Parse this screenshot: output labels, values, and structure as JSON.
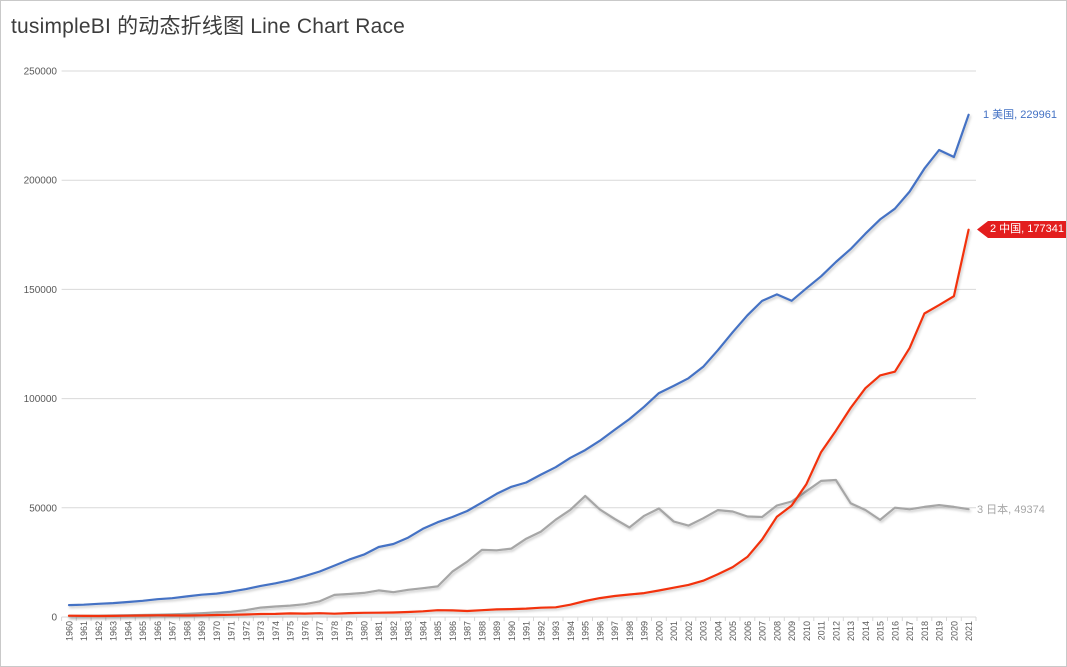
{
  "chart_data": {
    "type": "line",
    "title": "tusimpleBI 的动态折线图 Line Chart Race",
    "xlabel": "",
    "ylabel": "",
    "ylim": [
      0,
      250000
    ],
    "yticks": [
      0,
      50000,
      100000,
      150000,
      200000,
      250000
    ],
    "grid": "horizontal",
    "legend_position": "end-of-line-labels-right",
    "axis_text_color": "#595959",
    "gridline_color": "#d9d9d9",
    "x": [
      1960,
      1961,
      1962,
      1963,
      1964,
      1965,
      1966,
      1967,
      1968,
      1969,
      1970,
      1971,
      1972,
      1973,
      1974,
      1975,
      1976,
      1977,
      1978,
      1979,
      1980,
      1981,
      1982,
      1983,
      1984,
      1985,
      1986,
      1987,
      1988,
      1989,
      1990,
      1991,
      1992,
      1993,
      1994,
      1995,
      1996,
      1997,
      1998,
      1999,
      2000,
      2001,
      2002,
      2003,
      2004,
      2005,
      2006,
      2007,
      2008,
      2009,
      2010,
      2011,
      2012,
      2013,
      2014,
      2015,
      2016,
      2017,
      2018,
      2019,
      2020,
      2021
    ],
    "series": [
      {
        "id": "usa",
        "rank": 1,
        "name": "美国",
        "end_label": "1 美国, 229961",
        "final_value": 229961,
        "color": "#4472c4",
        "label_style": "plain",
        "values": [
          5433,
          5633,
          6051,
          6386,
          6858,
          7437,
          8150,
          8617,
          9425,
          10199,
          10733,
          11649,
          12791,
          14254,
          15452,
          16849,
          18734,
          20818,
          23516,
          26273,
          28573,
          32070,
          33438,
          36340,
          40376,
          43390,
          45796,
          48552,
          52364,
          56416,
          59631,
          61581,
          65203,
          68586,
          72872,
          76397,
          80731,
          85776,
          90628,
          96312,
          102509,
          105819,
          109291,
          114564,
          122172,
          130392,
          138156,
          144742,
          147699,
          144781,
          150490,
          155997,
          162540,
          168432,
          175507,
          182060,
          186951,
          194773,
          205331,
          213810,
          210605,
          229961
        ]
      },
      {
        "id": "china",
        "rank": 2,
        "name": "中国",
        "end_label": "2 中国, 177341",
        "final_value": 177341,
        "color": "#f2330d",
        "label_style": "red-banner",
        "banner_color": "#e31e1e",
        "values": [
          597,
          501,
          472,
          507,
          597,
          704,
          767,
          729,
          708,
          797,
          926,
          998,
          1137,
          1385,
          1442,
          1634,
          1539,
          1749,
          1495,
          1783,
          1911,
          1959,
          2051,
          2307,
          2599,
          3095,
          3008,
          2730,
          3124,
          3478,
          3609,
          3834,
          4269,
          4447,
          5643,
          7346,
          8637,
          9616,
          10290,
          10940,
          12113,
          13394,
          14705,
          16603,
          19553,
          22860,
          27521,
          35503,
          45943,
          51017,
          60872,
          75515,
          85322,
          95704,
          104757,
          110616,
          112333,
          123104,
          138948,
          142799,
          146877,
          177341
        ]
      },
      {
        "id": "japan",
        "rank": 3,
        "name": "日本",
        "end_label": "3 日本, 49374",
        "final_value": 49374,
        "color": "#a6a6a6",
        "label_style": "plain",
        "values": [
          443,
          535,
          607,
          695,
          817,
          910,
          1056,
          1238,
          1466,
          1722,
          2126,
          2403,
          3180,
          4321,
          4796,
          5215,
          5862,
          7211,
          10136,
          10550,
          11054,
          12189,
          11345,
          12433,
          13181,
          13989,
          20781,
          25326,
          30717,
          30549,
          31328,
          35849,
          39080,
          44541,
          49074,
          55456,
          49236,
          44924,
          40984,
          46359,
          49682,
          43747,
          41828,
          45196,
          48931,
          48318,
          46016,
          45798,
          51067,
          52895,
          57591,
          62331,
          62724,
          52123,
          48970,
          44449,
          50037,
          49308,
          50409,
          51233,
          50401,
          49374
        ]
      }
    ]
  }
}
